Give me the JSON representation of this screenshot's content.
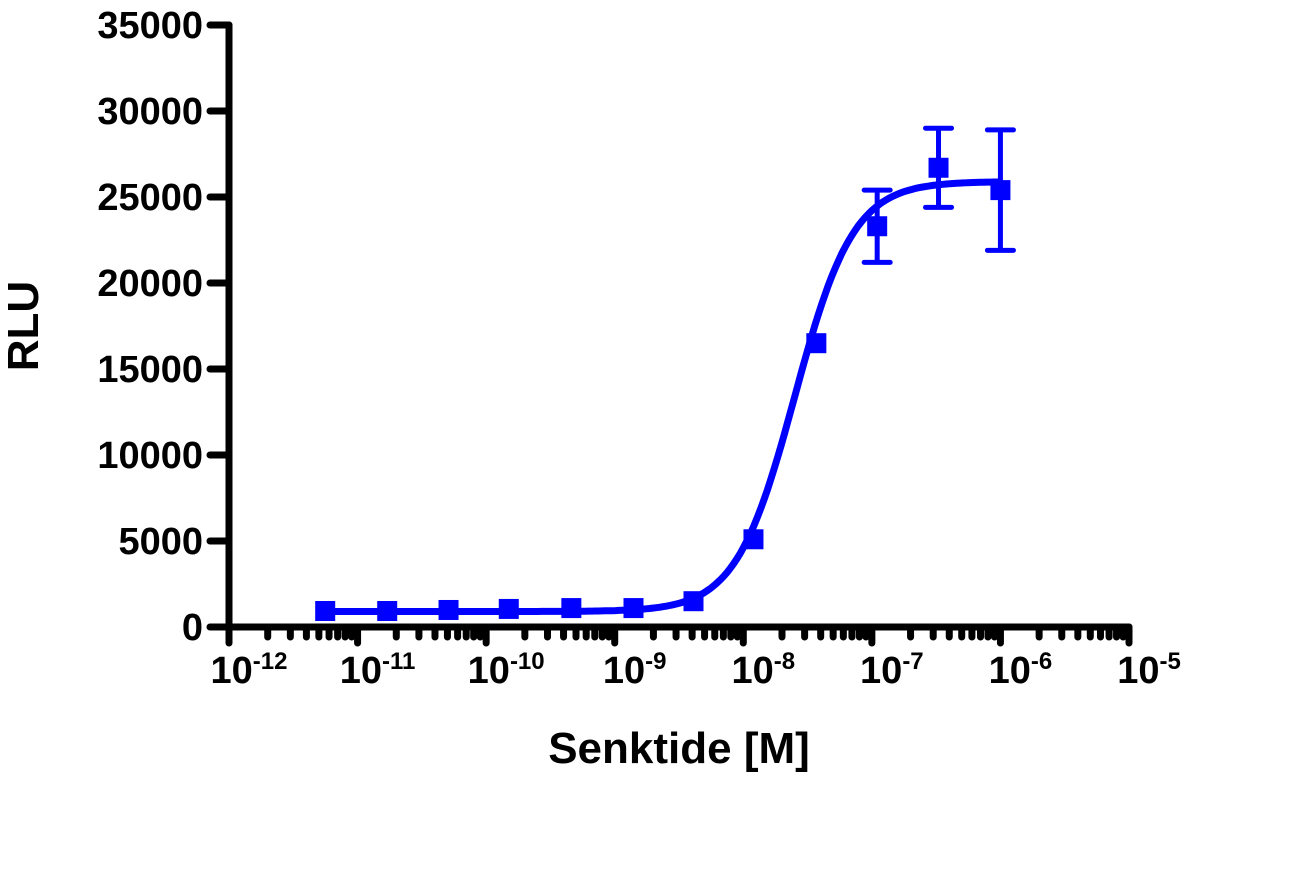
{
  "chart_data": {
    "type": "scatter",
    "title": "",
    "xlabel": "Senktide [M]",
    "ylabel": "RLU",
    "xscale": "log",
    "xlim": [
      1e-12,
      1e-05
    ],
    "ylim": [
      0,
      35000
    ],
    "y_ticks": [
      0,
      5000,
      10000,
      15000,
      20000,
      25000,
      30000,
      35000
    ],
    "y_tick_labels": [
      "0",
      "5000",
      "10000",
      "15000",
      "20000",
      "25000",
      "30000",
      "35000"
    ],
    "x_ticks": [
      -12,
      -11,
      -10,
      -9,
      -8,
      -7,
      -6,
      -5
    ],
    "x_tick_labels": [
      {
        "base": "10",
        "exp": "-12"
      },
      {
        "base": "10",
        "exp": "-11"
      },
      {
        "base": "10",
        "exp": "-10"
      },
      {
        "base": "10",
        "exp": "-9"
      },
      {
        "base": "10",
        "exp": "-8"
      },
      {
        "base": "10",
        "exp": "-7"
      },
      {
        "base": "10",
        "exp": "-6"
      },
      {
        "base": "10",
        "exp": "-5"
      }
    ],
    "grid": false,
    "legend": null,
    "series": [
      {
        "name": "Senktide",
        "color": "#0000ff",
        "marker": "square",
        "fit": "sigmoidal dose-response",
        "x": [
          5.6e-12,
          1.7e-11,
          5.1e-11,
          1.5e-10,
          4.6e-10,
          1.4e-09,
          4.1e-09,
          1.2e-08,
          3.7e-08,
          1.1e-07,
          3.3e-07,
          1e-06
        ],
        "y": [
          930,
          930,
          990,
          1050,
          1100,
          1100,
          1500,
          5100,
          16500,
          23300,
          26700,
          25400
        ],
        "y_err_low": [
          null,
          null,
          null,
          null,
          null,
          null,
          null,
          null,
          null,
          21200,
          24400,
          21900
        ],
        "y_err_high": [
          null,
          null,
          null,
          null,
          null,
          null,
          null,
          null,
          null,
          25400,
          29000,
          28900
        ]
      }
    ],
    "fit_params": {
      "bottom": 900,
      "top": 25900,
      "log_ec50": -7.6,
      "hill": 1.9
    }
  }
}
